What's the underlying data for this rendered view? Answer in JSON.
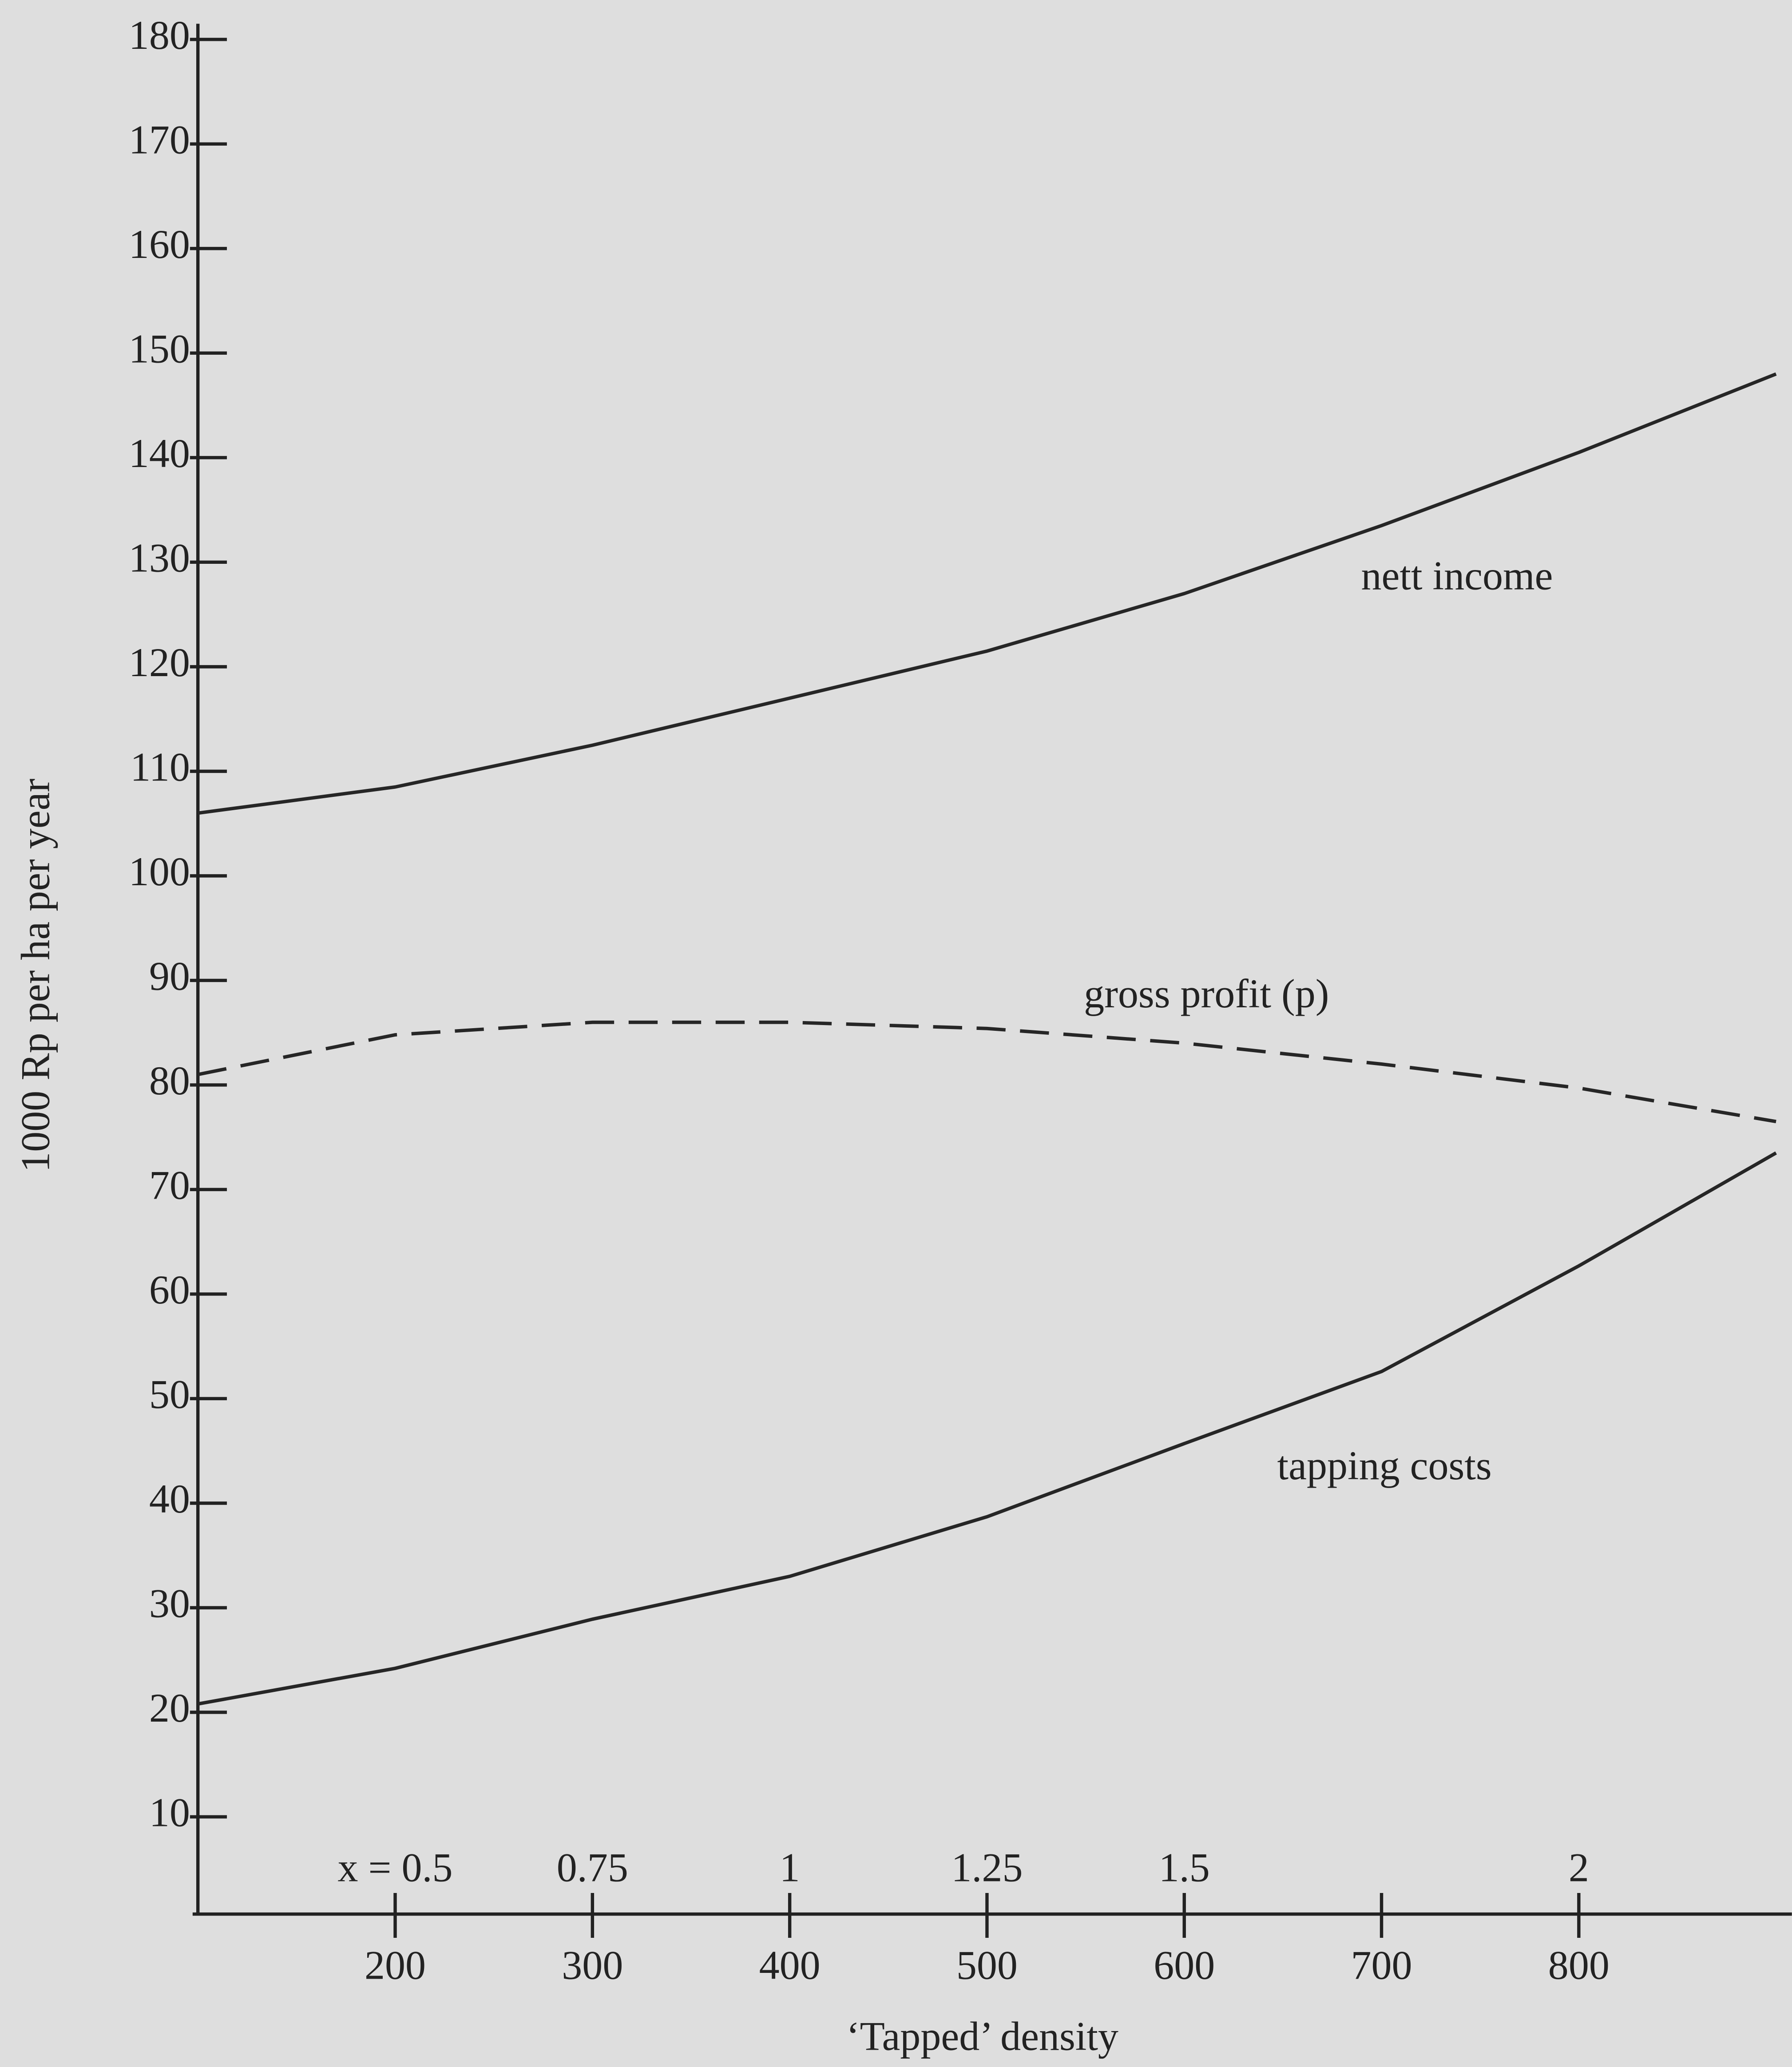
{
  "chart_data": {
    "type": "line",
    "x": [
      100,
      200,
      300,
      400,
      500,
      600,
      700,
      800,
      900
    ],
    "series": [
      {
        "name": "nett income",
        "color": "#262626",
        "dash": false,
        "values": [
          106,
          108.5,
          112.5,
          117,
          121.5,
          127,
          133.5,
          140.5,
          148
        ]
      },
      {
        "name": "gross profit (p)",
        "color": "#262626",
        "dash": true,
        "values": [
          81,
          84.8,
          86,
          86,
          85.4,
          84,
          82,
          79.7,
          76.5
        ]
      },
      {
        "name": "tapping costs",
        "color": "#262626",
        "dash": false,
        "values": [
          20.8,
          24.2,
          28.9,
          33,
          38.7,
          45.7,
          52.6,
          62.7,
          73.5
        ]
      }
    ],
    "xlabel": "‘Tapped’ density",
    "ylabel": "1000 Rp per ha per year",
    "xlim": [
      100,
      908
    ],
    "ylim": [
      0.7,
      181.5
    ],
    "xticks": [
      200,
      300,
      400,
      500,
      600,
      700,
      800
    ],
    "x2ticks": [
      {
        "value": 200,
        "label": "x = 0.5"
      },
      {
        "value": 300,
        "label": "0.75"
      },
      {
        "value": 400,
        "label": "1"
      },
      {
        "value": 500,
        "label": "1.25"
      },
      {
        "value": 600,
        "label": "1.5"
      },
      {
        "value": 800,
        "label": "2"
      }
    ],
    "yticks": [
      10,
      20,
      30,
      40,
      50,
      60,
      70,
      80,
      90,
      100,
      110,
      120,
      130,
      140,
      150,
      160,
      170,
      180
    ],
    "grid": false
  }
}
